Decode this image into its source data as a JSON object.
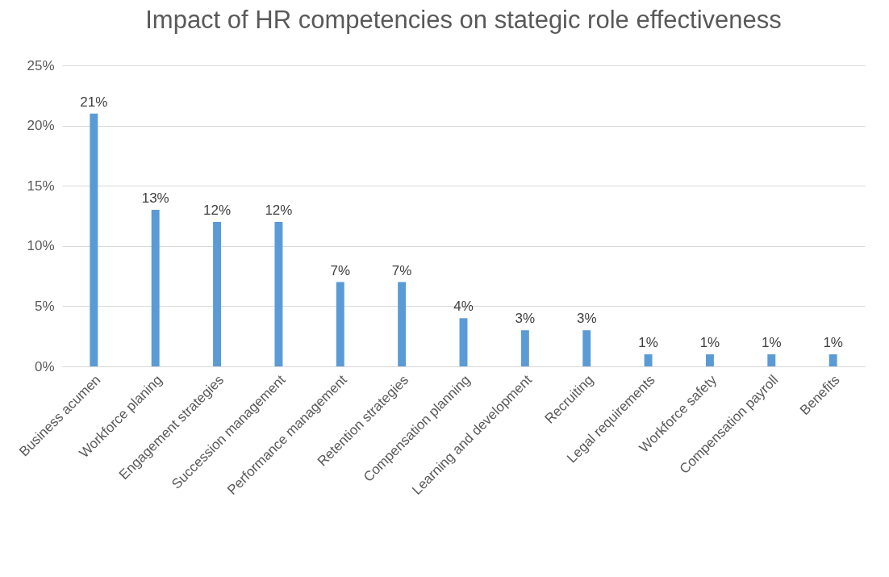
{
  "chart_data": {
    "type": "bar",
    "title": "Impact of HR competencies on stategic role effectiveness",
    "categories": [
      "Business acumen",
      "Workforce planing",
      "Engagement strategies",
      "Succession management",
      "Performance management",
      "Retention strategies",
      "Compensation planning",
      "Learning and development",
      "Recruiting",
      "Legal requirements",
      "Workforce safety",
      "Compensation payroll",
      "Benefits"
    ],
    "values": [
      21,
      13,
      12,
      12,
      7,
      7,
      4,
      3,
      3,
      1,
      1,
      1,
      1
    ],
    "value_labels": [
      "21%",
      "13%",
      "12%",
      "12%",
      "7%",
      "7%",
      "4%",
      "3%",
      "3%",
      "1%",
      "1%",
      "1%",
      "1%"
    ],
    "color": "#5b9bd5",
    "ylim": [
      0,
      25
    ],
    "yticks": [
      {
        "value": 0,
        "label": "0%"
      },
      {
        "value": 5,
        "label": "5%"
      },
      {
        "value": 10,
        "label": "10%"
      },
      {
        "value": 15,
        "label": "15%"
      },
      {
        "value": 20,
        "label": "20%"
      },
      {
        "value": 25,
        "label": "25%"
      }
    ],
    "grid": "y"
  }
}
